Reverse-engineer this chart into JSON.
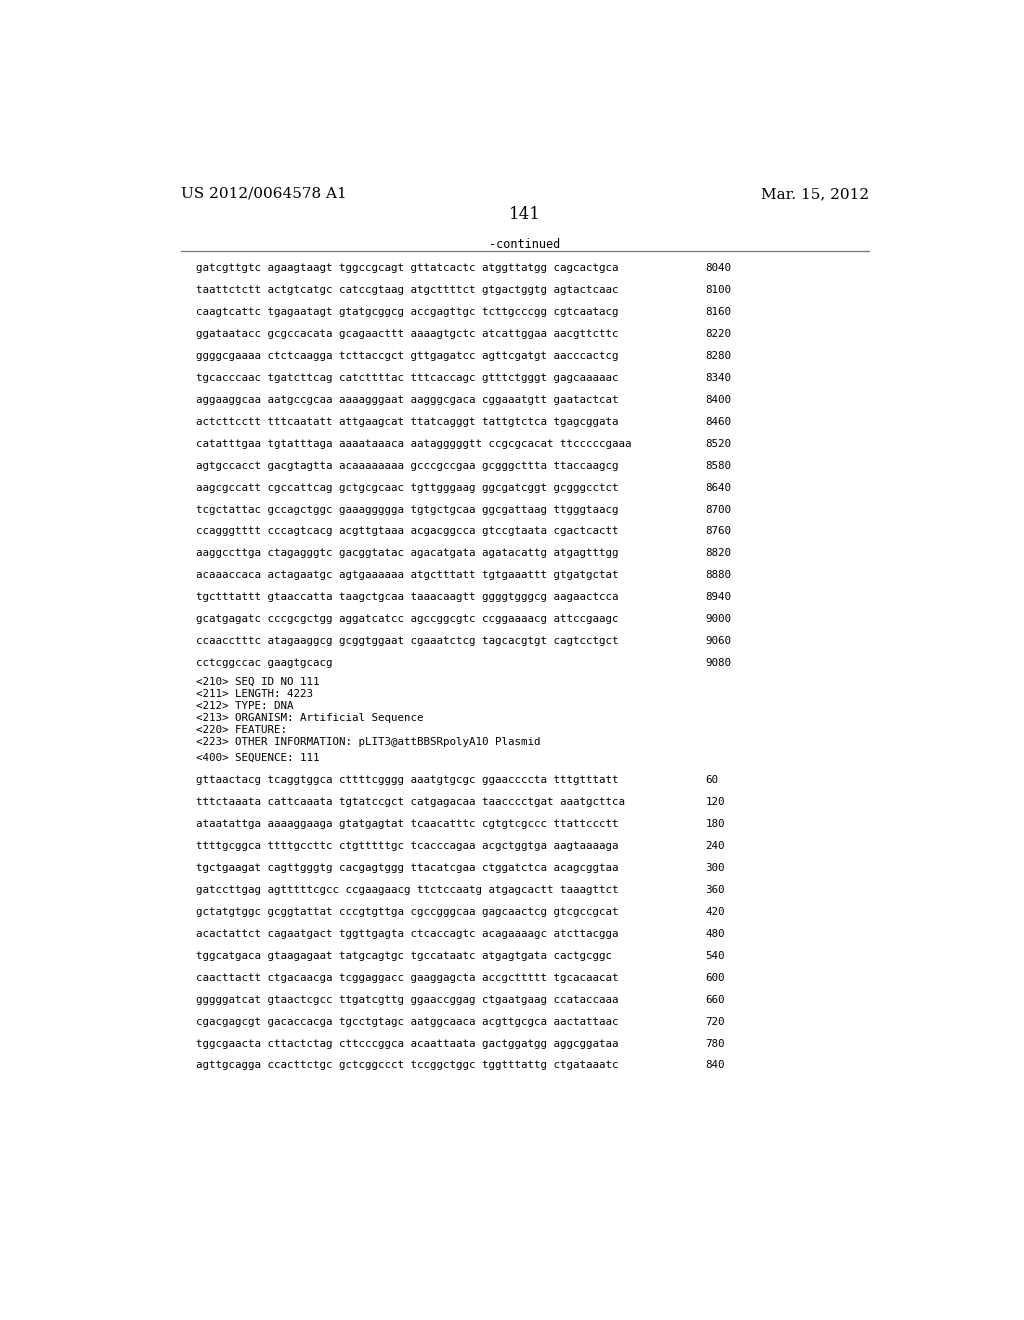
{
  "header_left": "US 2012/0064578 A1",
  "header_right": "Mar. 15, 2012",
  "page_number": "141",
  "continued_label": "-continued",
  "background_color": "#ffffff",
  "text_color": "#000000",
  "sequence_lines_top": [
    [
      "gatcgttgtc agaagtaagt tggccgcagt gttatcactc atggttatgg cagcactgca",
      "8040"
    ],
    [
      "taattctctt actgtcatgc catccgtaag atgcttttct gtgactggtg agtactcaac",
      "8100"
    ],
    [
      "caagtcattc tgagaatagt gtatgcggcg accgagttgc tcttgcccgg cgtcaatacg",
      "8160"
    ],
    [
      "ggataatacc gcgccacata gcagaacttt aaaagtgctc atcattggaa aacgttcttc",
      "8220"
    ],
    [
      "ggggcgaaaa ctctcaagga tcttaccgct gttgagatcc agttcgatgt aacccactcg",
      "8280"
    ],
    [
      "tgcacccaac tgatcttcag catcttttac tttcaccagc gtttctgggt gagcaaaaac",
      "8340"
    ],
    [
      "aggaaggcaa aatgccgcaa aaaagggaat aagggcgaca cggaaatgtt gaatactcat",
      "8400"
    ],
    [
      "actcttcctt tttcaatatt attgaagcat ttatcagggt tattgtctca tgagcggata",
      "8460"
    ],
    [
      "catatttgaa tgtatttaga aaaataaaca aatagggggtt ccgcgcacat ttcccccgaaa",
      "8520"
    ],
    [
      "agtgccacct gacgtagtta acaaaaaaaa gcccgccgaa gcgggcttta ttaccaagcg",
      "8580"
    ],
    [
      "aagcgccatt cgccattcag gctgcgcaac tgttgggaag ggcgatcggt gcgggcctct",
      "8640"
    ],
    [
      "tcgctattac gccagctggc gaaaggggga tgtgctgcaa ggcgattaag ttgggtaacg",
      "8700"
    ],
    [
      "ccagggtttt cccagtcacg acgttgtaaa acgacggcca gtccgtaata cgactcactt",
      "8760"
    ],
    [
      "aaggccttga ctagagggtc gacggtatac agacatgata agatacattg atgagtttgg",
      "8820"
    ],
    [
      "acaaaccaca actagaatgc agtgaaaaaa atgctttatt tgtgaaattt gtgatgctat",
      "8880"
    ],
    [
      "tgctttattt gtaaccatta taagctgcaa taaacaagtt ggggtgggcg aagaactcca",
      "8940"
    ],
    [
      "gcatgagatc cccgcgctgg aggatcatcc agccggcgtc ccggaaaacg attccgaagc",
      "9000"
    ],
    [
      "ccaacctttc atagaaggcg gcggtggaat cgaaatctcg tagcacgtgt cagtcctgct",
      "9060"
    ],
    [
      "cctcggccac gaagtgcacg",
      "9080"
    ]
  ],
  "metadata_lines": [
    "<210> SEQ ID NO 111",
    "<211> LENGTH: 4223",
    "<212> TYPE: DNA",
    "<213> ORGANISM: Artificial Sequence",
    "<220> FEATURE:",
    "<223> OTHER INFORMATION: pLIT3@attBBSRpolyA10 Plasmid"
  ],
  "sequence_label": "<400> SEQUENCE: 111",
  "sequence_lines_bottom": [
    [
      "gttaactacg tcaggtggca cttttcgggg aaatgtgcgc ggaaccccta tttgtttatt",
      "60"
    ],
    [
      "tttctaaata cattcaaata tgtatccgct catgagacaa taacccctgat aaatgcttca",
      "120"
    ],
    [
      "ataatattga aaaaggaaga gtatgagtat tcaacatttc cgtgtcgccc ttattccctt",
      "180"
    ],
    [
      "ttttgcggca ttttgccttc ctgtttttgc tcacccagaa acgctggtga aagtaaaaga",
      "240"
    ],
    [
      "tgctgaagat cagttgggtg cacgagtggg ttacatcgaa ctggatctca acagcggtaa",
      "300"
    ],
    [
      "gatccttgag agtttttcgcc ccgaagaacg ttctccaatg atgagcactt taaagttct",
      "360"
    ],
    [
      "gctatgtggc gcggtattat cccgtgttga cgccgggcaa gagcaactcg gtcgccgcat",
      "420"
    ],
    [
      "acactattct cagaatgact tggttgagta ctcaccagtc acagaaaagc atcttacgga",
      "480"
    ],
    [
      "tggcatgaca gtaagagaat tatgcagtgc tgccataatc atgagtgata cactgcggc",
      "540"
    ],
    [
      "caacttactt ctgacaacga tcggaggacc gaaggagcta accgcttttt tgcacaacat",
      "600"
    ],
    [
      "gggggatcat gtaactcgcc ttgatcgttg ggaaccggag ctgaatgaag ccataccaaa",
      "660"
    ],
    [
      "cgacgagcgt gacaccacga tgcctgtagc aatggcaaca acgttgcgca aactattaac",
      "720"
    ],
    [
      "tggcgaacta cttactctag cttcccggca acaattaata gactggatgg aggcggataa",
      "780"
    ],
    [
      "agttgcagga ccacttctgc gctcggccct tccggctggc tggtttattg ctgataaatc",
      "840"
    ]
  ]
}
